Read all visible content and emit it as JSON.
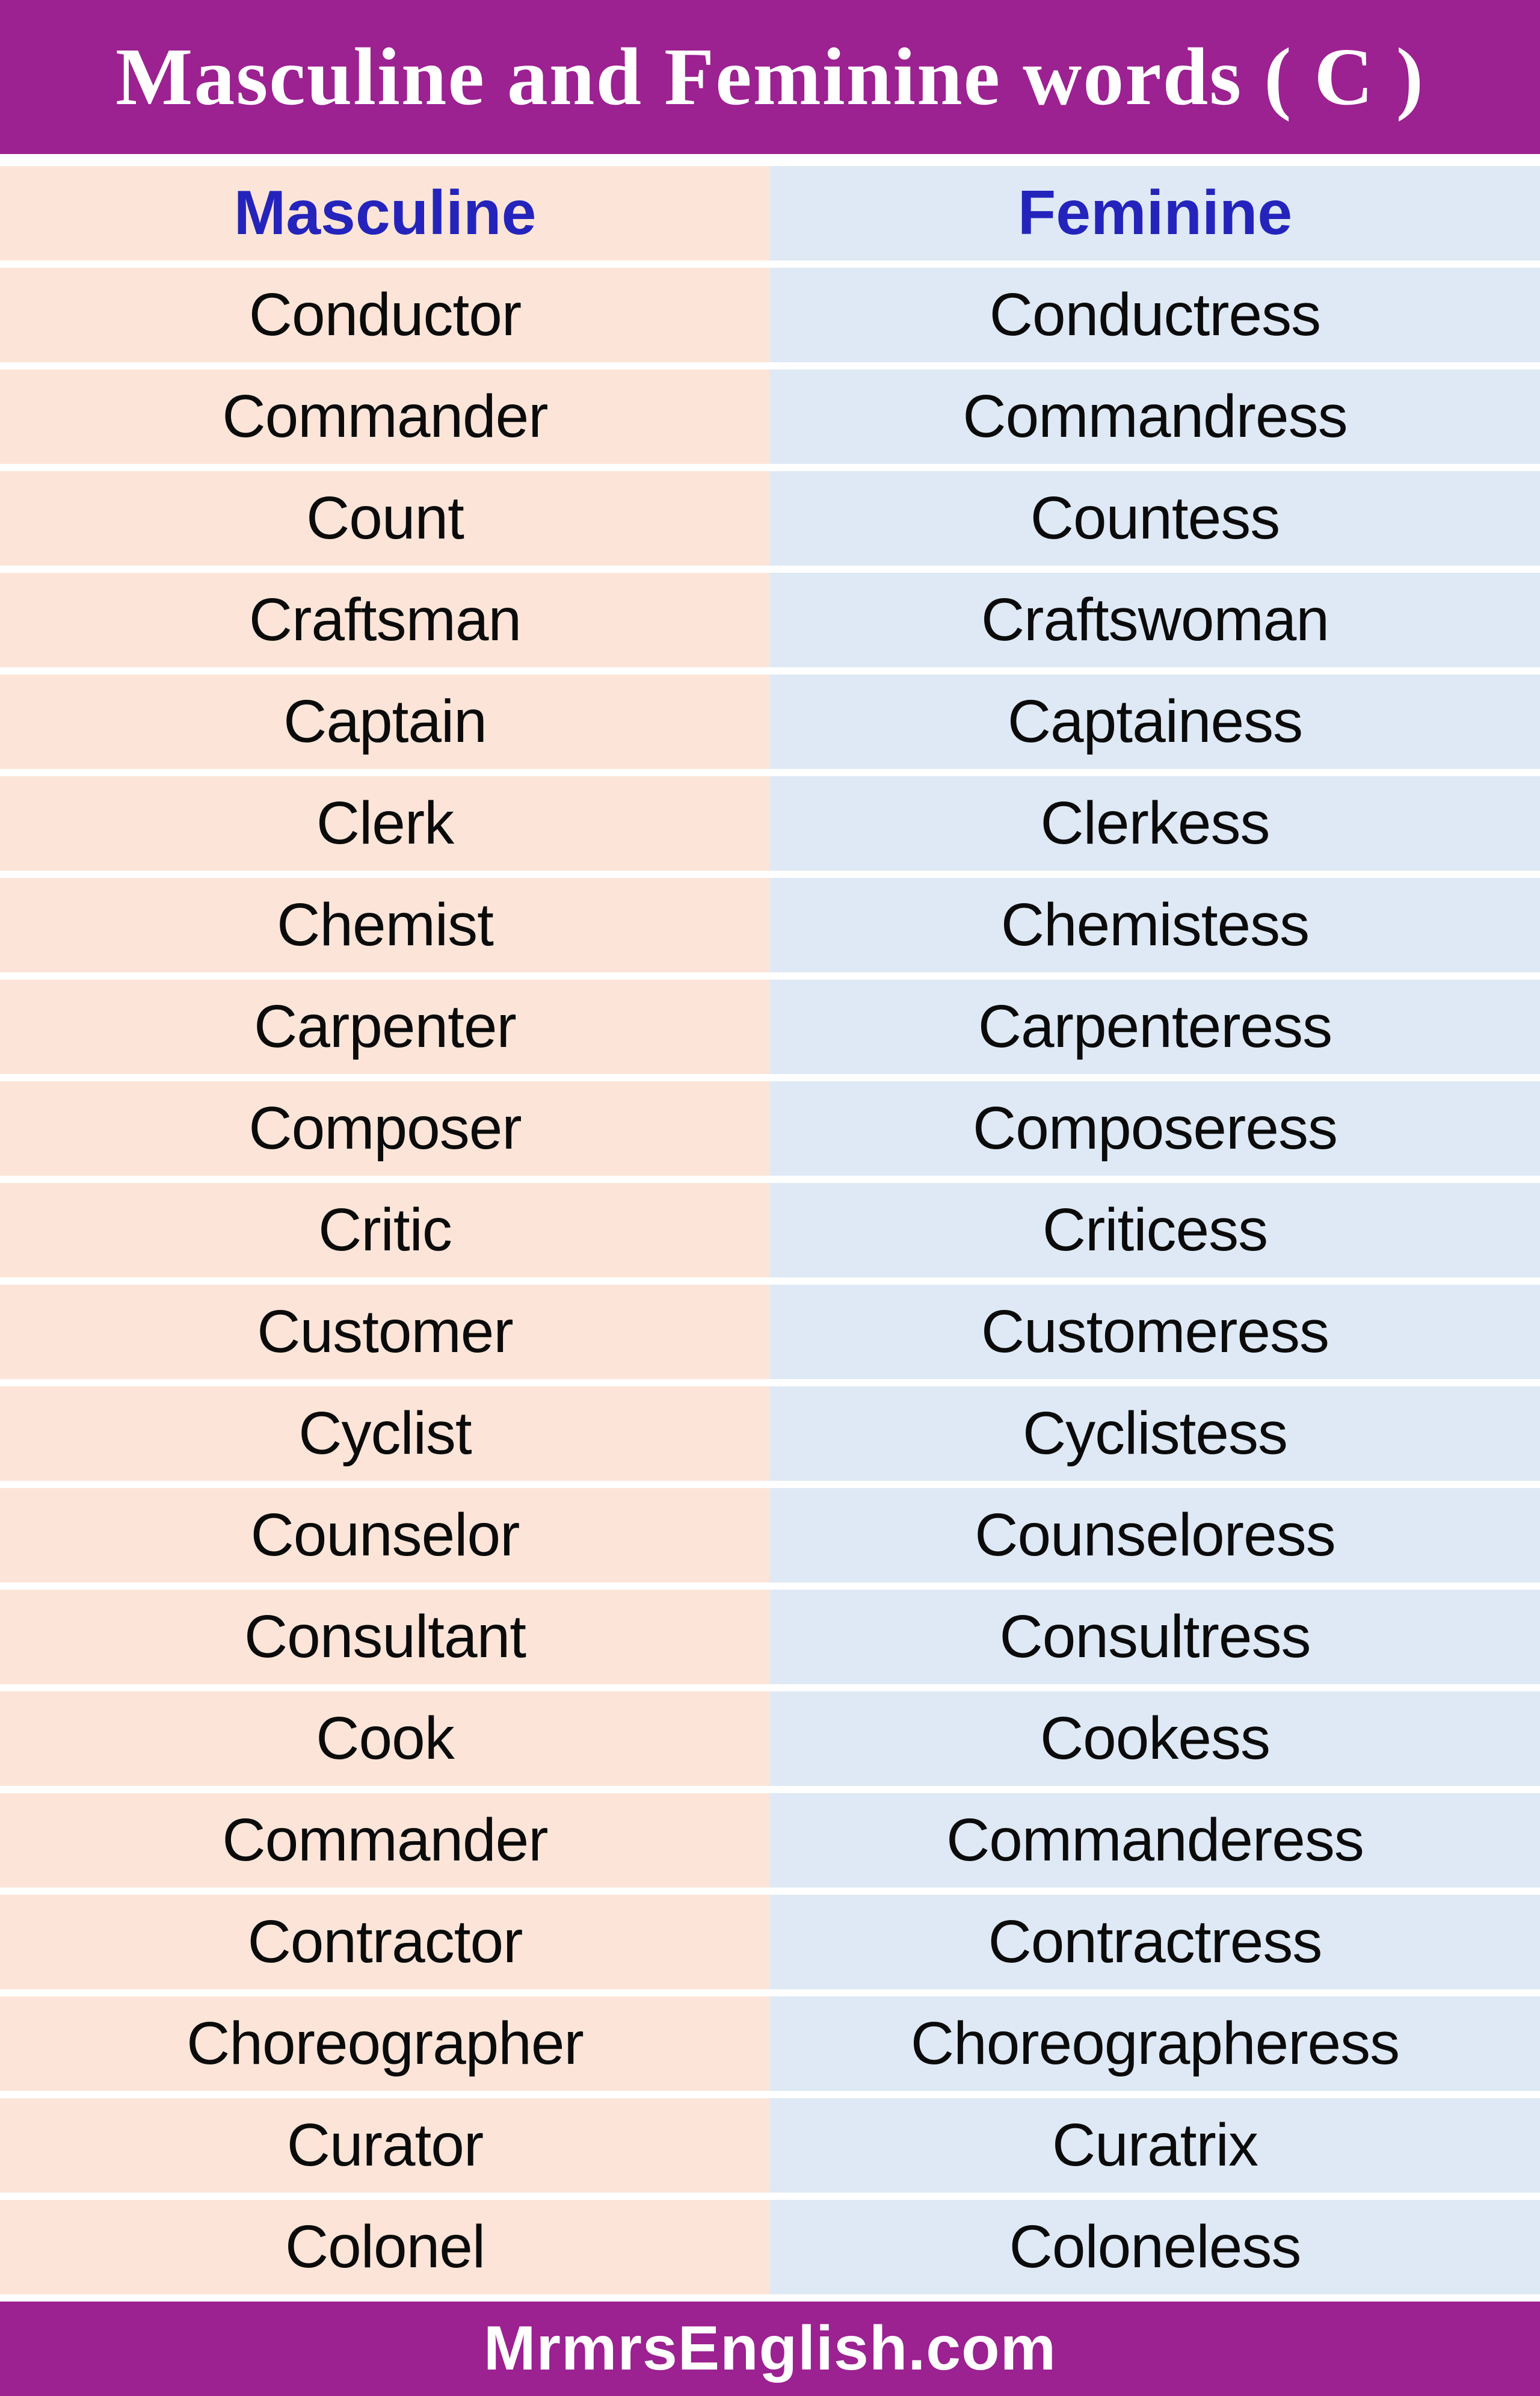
{
  "title": "Masculine and Feminine words ( C )",
  "columns": {
    "masculine": "Masculine",
    "feminine": "Feminine"
  },
  "rows": [
    {
      "m": "Conductor",
      "f": "Conductress"
    },
    {
      "m": "Commander",
      "f": "Commandress"
    },
    {
      "m": "Count",
      "f": "Countess"
    },
    {
      "m": "Craftsman",
      "f": "Craftswoman"
    },
    {
      "m": "Captain",
      "f": "Captainess"
    },
    {
      "m": "Clerk",
      "f": "Clerkess"
    },
    {
      "m": "Chemist",
      "f": "Chemistess"
    },
    {
      "m": "Carpenter",
      "f": "Carpenteress"
    },
    {
      "m": "Composer",
      "f": "Composeress"
    },
    {
      "m": "Critic",
      "f": "Criticess"
    },
    {
      "m": "Customer",
      "f": "Customeress"
    },
    {
      "m": "Cyclist",
      "f": "Cyclistess"
    },
    {
      "m": "Counselor",
      "f": "Counseloress"
    },
    {
      "m": "Consultant",
      "f": "Consultress"
    },
    {
      "m": "Cook",
      "f": "Cookess"
    },
    {
      "m": "Commander",
      "f": "Commanderess"
    },
    {
      "m": "Contractor",
      "f": "Contractress"
    },
    {
      "m": "Choreographer",
      "f": "Choreographeress"
    },
    {
      "m": "Curator",
      "f": "Curatrix"
    },
    {
      "m": "Colonel",
      "f": "Coloneless"
    }
  ],
  "footer": {
    "site": "MrmrsEnglish.com"
  },
  "colors": {
    "band_purple": "#9c2191",
    "masculine_cell": "#fce5d8",
    "feminine_cell": "#dee9f5",
    "header_text_blue": "#2424bc",
    "word_text": "#0b0b0b",
    "separator": "#ffffff",
    "title_text": "#ffffff",
    "footer_text": "#ffffff"
  }
}
